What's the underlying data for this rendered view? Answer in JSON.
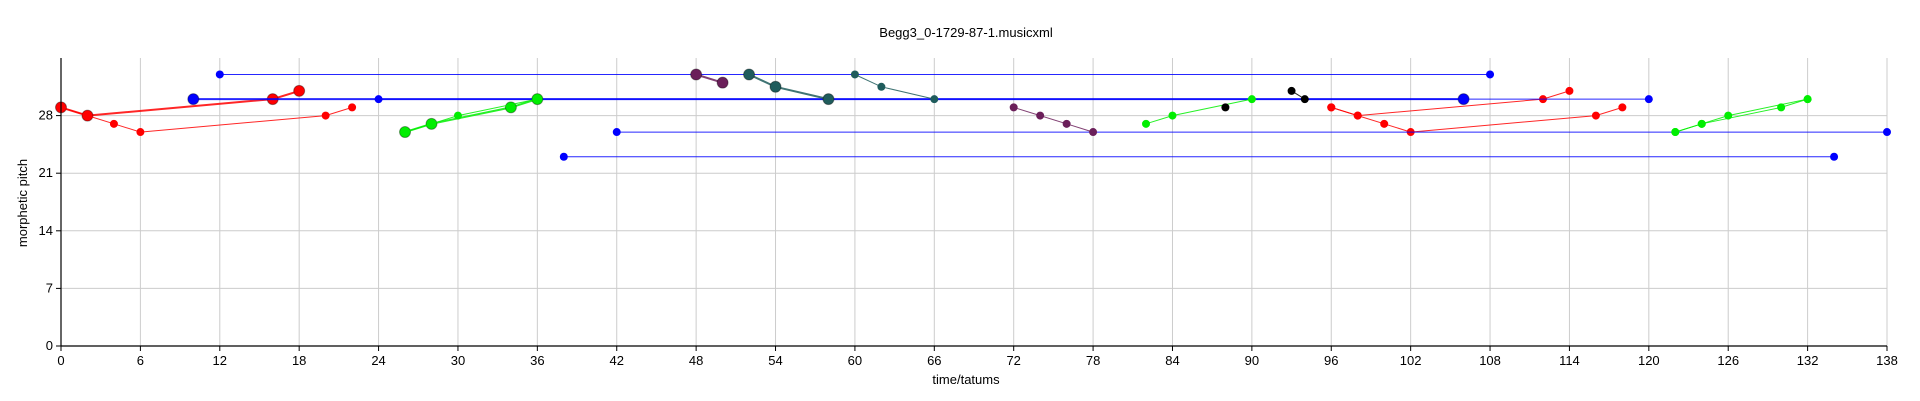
{
  "chart_data": {
    "type": "scatter",
    "title": "Begg3_0-1729-87-1.musicxml",
    "xlabel": "time/tatums",
    "ylabel": "morphetic pitch",
    "xlim": [
      0,
      138
    ],
    "ylim": [
      0,
      35
    ],
    "xticks": [
      0,
      6,
      12,
      18,
      24,
      30,
      36,
      42,
      48,
      54,
      60,
      66,
      72,
      78,
      84,
      90,
      96,
      102,
      108,
      114,
      120,
      126,
      132,
      138
    ],
    "yticks": [
      0,
      7,
      14,
      21,
      28
    ],
    "grid": true,
    "legend": "none",
    "series": [
      {
        "color": "#ff0000",
        "segments": [
          {
            "points": [
              [
                0,
                29
              ],
              [
                2,
                28
              ],
              [
                16,
                30
              ],
              [
                18,
                31
              ]
            ],
            "size": "large",
            "width": 2
          },
          {
            "points": [
              [
                0,
                29
              ],
              [
                2,
                28
              ],
              [
                4,
                27
              ],
              [
                6,
                26
              ],
              [
                20,
                28
              ],
              [
                22,
                29
              ]
            ],
            "size": "small",
            "width": 1
          },
          {
            "points": [
              [
                96,
                29
              ],
              [
                98,
                28
              ],
              [
                112,
                30
              ],
              [
                114,
                31
              ]
            ],
            "size": "small",
            "width": 1
          },
          {
            "points": [
              [
                96,
                29
              ],
              [
                98,
                28
              ],
              [
                100,
                27
              ],
              [
                102,
                26
              ],
              [
                116,
                28
              ],
              [
                118,
                29
              ]
            ],
            "size": "small",
            "width": 1
          }
        ]
      },
      {
        "color": "#0000ff",
        "segments": [
          {
            "points": [
              [
                12,
                33
              ],
              [
                108,
                33
              ]
            ],
            "size": "small",
            "width": 1
          },
          {
            "points": [
              [
                10,
                30
              ],
              [
                106,
                30
              ]
            ],
            "size": "large",
            "width": 2
          },
          {
            "points": [
              [
                24,
                30
              ],
              [
                120,
                30
              ]
            ],
            "size": "small",
            "width": 1
          },
          {
            "points": [
              [
                42,
                26
              ],
              [
                138,
                26
              ]
            ],
            "size": "small",
            "width": 1
          },
          {
            "points": [
              [
                38,
                23
              ],
              [
                134,
                23
              ]
            ],
            "size": "small",
            "width": 1
          }
        ]
      },
      {
        "color": "#00ee00",
        "segments": [
          {
            "points": [
              [
                26,
                26
              ],
              [
                28,
                27
              ],
              [
                34,
                29
              ],
              [
                36,
                30
              ]
            ],
            "size": "large",
            "width": 2
          },
          {
            "points": [
              [
                26,
                26
              ],
              [
                28,
                27
              ],
              [
                30,
                28
              ],
              [
                36,
                30
              ]
            ],
            "size": "small",
            "width": 1
          },
          {
            "points": [
              [
                82,
                27
              ],
              [
                84,
                28
              ],
              [
                90,
                30
              ]
            ],
            "size": "small",
            "width": 1
          },
          {
            "points": [
              [
                122,
                26
              ],
              [
                124,
                27
              ],
              [
                126,
                28
              ],
              [
                132,
                30
              ]
            ],
            "size": "small",
            "width": 1
          },
          {
            "points": [
              [
                122,
                26
              ],
              [
                124,
                27
              ],
              [
                130,
                29
              ],
              [
                132,
                30
              ]
            ],
            "size": "small",
            "width": 1
          }
        ]
      },
      {
        "color": "#6b1f5a",
        "segments": [
          {
            "points": [
              [
                48,
                33
              ],
              [
                50,
                32
              ]
            ],
            "size": "large",
            "width": 2
          },
          {
            "points": [
              [
                72,
                29
              ],
              [
                74,
                28
              ],
              [
                76,
                27
              ],
              [
                78,
                26
              ]
            ],
            "size": "small",
            "width": 1
          }
        ]
      },
      {
        "color": "#1f5c5c",
        "segments": [
          {
            "points": [
              [
                52,
                33
              ],
              [
                54,
                31.5
              ],
              [
                58,
                30
              ]
            ],
            "size": "large",
            "width": 2
          },
          {
            "points": [
              [
                60,
                33
              ],
              [
                62,
                31.5
              ],
              [
                66,
                30
              ]
            ],
            "size": "small",
            "width": 1
          }
        ]
      },
      {
        "color": "#000000",
        "segments": [
          {
            "points": [
              [
                88,
                29
              ]
            ],
            "size": "small",
            "width": 1
          },
          {
            "points": [
              [
                93,
                31
              ],
              [
                94,
                30
              ]
            ],
            "size": "small",
            "width": 1
          }
        ]
      }
    ]
  }
}
